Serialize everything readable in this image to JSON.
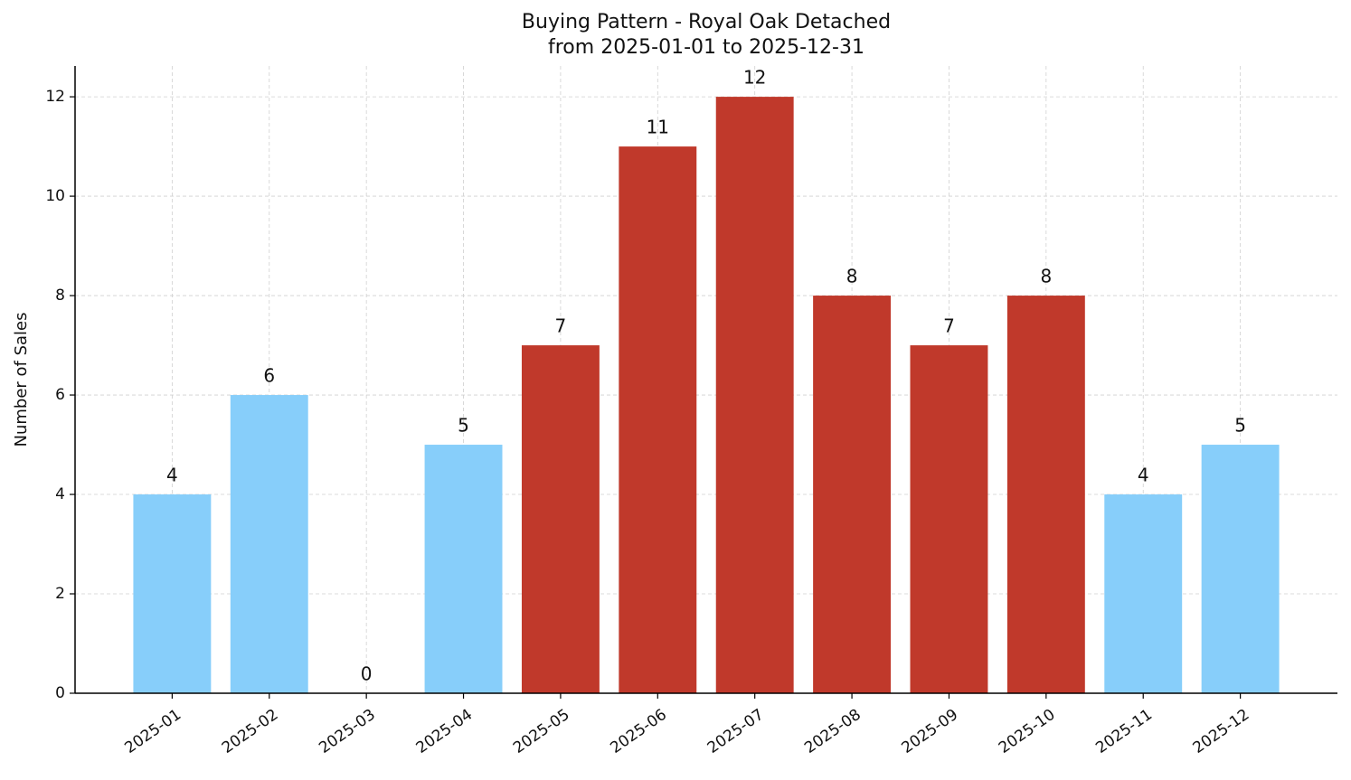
{
  "chart_data": {
    "type": "bar",
    "title": "Buying Pattern - Royal Oak Detached",
    "subtitle": "from 2025-01-01 to 2025-12-31",
    "y_label": "Number of Sales",
    "categories": [
      "2025-01",
      "2025-02",
      "2025-03",
      "2025-04",
      "2025-05",
      "2025-06",
      "2025-07",
      "2025-08",
      "2025-09",
      "2025-10",
      "2025-11",
      "2025-12"
    ],
    "values": [
      4,
      6,
      0,
      5,
      7,
      11,
      12,
      8,
      7,
      8,
      4,
      5
    ],
    "colors": [
      "#87cefa",
      "#87cefa",
      "#87cefa",
      "#87cefa",
      "#c0392b",
      "#c0392b",
      "#c0392b",
      "#c0392b",
      "#c0392b",
      "#c0392b",
      "#87cefa",
      "#87cefa"
    ],
    "ylim": [
      0,
      12.62
    ],
    "yticks": [
      0,
      2,
      4,
      6,
      8,
      10,
      12
    ],
    "grid": true
  }
}
